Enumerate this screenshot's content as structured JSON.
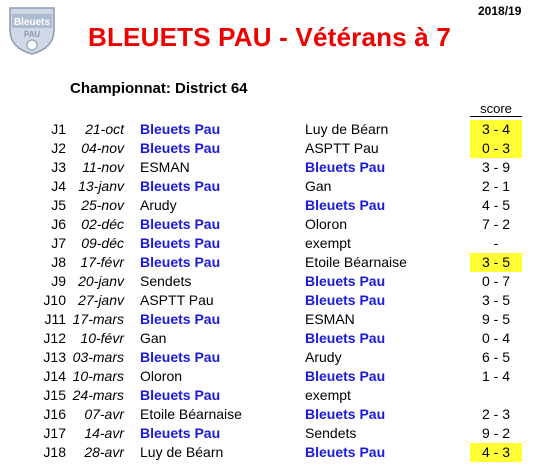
{
  "header": {
    "logo_text": "Bleuets PAU",
    "season": "2018/19",
    "title": "BLEUETS PAU - Vétérans à 7",
    "subtitle": "Championnat: District 64",
    "score_label": "score"
  },
  "colors": {
    "title": "#ee0000",
    "home_team": "#1a1adb",
    "highlight": "#ffff33"
  },
  "matches": [
    {
      "day": "J1",
      "date": "21-oct",
      "home": "Bleuets Pau",
      "away": "Luy de Béarn",
      "score": "3 - 4",
      "highlight": true
    },
    {
      "day": "J2",
      "date": "04-nov",
      "home": "Bleuets Pau",
      "away": "ASPTT Pau",
      "score": "0 - 3",
      "highlight": true
    },
    {
      "day": "J3",
      "date": "11-nov",
      "home": "ESMAN",
      "away": "Bleuets Pau",
      "score": "3 - 9",
      "highlight": false
    },
    {
      "day": "J4",
      "date": "13-janv",
      "home": "Bleuets Pau",
      "away": "Gan",
      "score": "2 - 1",
      "highlight": false
    },
    {
      "day": "J5",
      "date": "25-nov",
      "home": "Arudy",
      "away": "Bleuets Pau",
      "score": "4 - 5",
      "highlight": false
    },
    {
      "day": "J6",
      "date": "02-déc",
      "home": "Bleuets Pau",
      "away": "Oloron",
      "score": "7 - 2",
      "highlight": false
    },
    {
      "day": "J7",
      "date": "09-déc",
      "home": "Bleuets Pau",
      "away": "exempt",
      "score": "-",
      "highlight": false
    },
    {
      "day": "J8",
      "date": "17-févr",
      "home": "Bleuets Pau",
      "away": "Etoile Béarnaise",
      "score": "3 - 5",
      "highlight": true
    },
    {
      "day": "J9",
      "date": "20-janv",
      "home": "Sendets",
      "away": "Bleuets Pau",
      "score": "0 - 7",
      "highlight": false
    },
    {
      "day": "J10",
      "date": "27-janv",
      "home": "ASPTT Pau",
      "away": "Bleuets Pau",
      "score": "3 - 5",
      "highlight": false
    },
    {
      "day": "J11",
      "date": "17-mars",
      "home": "Bleuets Pau",
      "away": "ESMAN",
      "score": "9 - 5",
      "highlight": false
    },
    {
      "day": "J12",
      "date": "10-févr",
      "home": "Gan",
      "away": "Bleuets Pau",
      "score": "0 - 4",
      "highlight": false
    },
    {
      "day": "J13",
      "date": "03-mars",
      "home": "Bleuets Pau",
      "away": "Arudy",
      "score": "6 - 5",
      "highlight": false
    },
    {
      "day": "J14",
      "date": "10-mars",
      "home": "Oloron",
      "away": "Bleuets Pau",
      "score": "1 - 4",
      "highlight": false
    },
    {
      "day": "J15",
      "date": "24-mars",
      "home": "Bleuets Pau",
      "away": "exempt",
      "score": "",
      "highlight": false
    },
    {
      "day": "J16",
      "date": "07-avr",
      "home": "Etoile Béarnaise",
      "away": "Bleuets Pau",
      "score": "2 - 3",
      "highlight": false
    },
    {
      "day": "J17",
      "date": "14-avr",
      "home": "Bleuets Pau",
      "away": "Sendets",
      "score": "9 - 2",
      "highlight": false
    },
    {
      "day": "J18",
      "date": "28-avr",
      "home": "Luy de Béarn",
      "away": "Bleuets Pau",
      "score": "4 - 3",
      "highlight": true
    }
  ]
}
